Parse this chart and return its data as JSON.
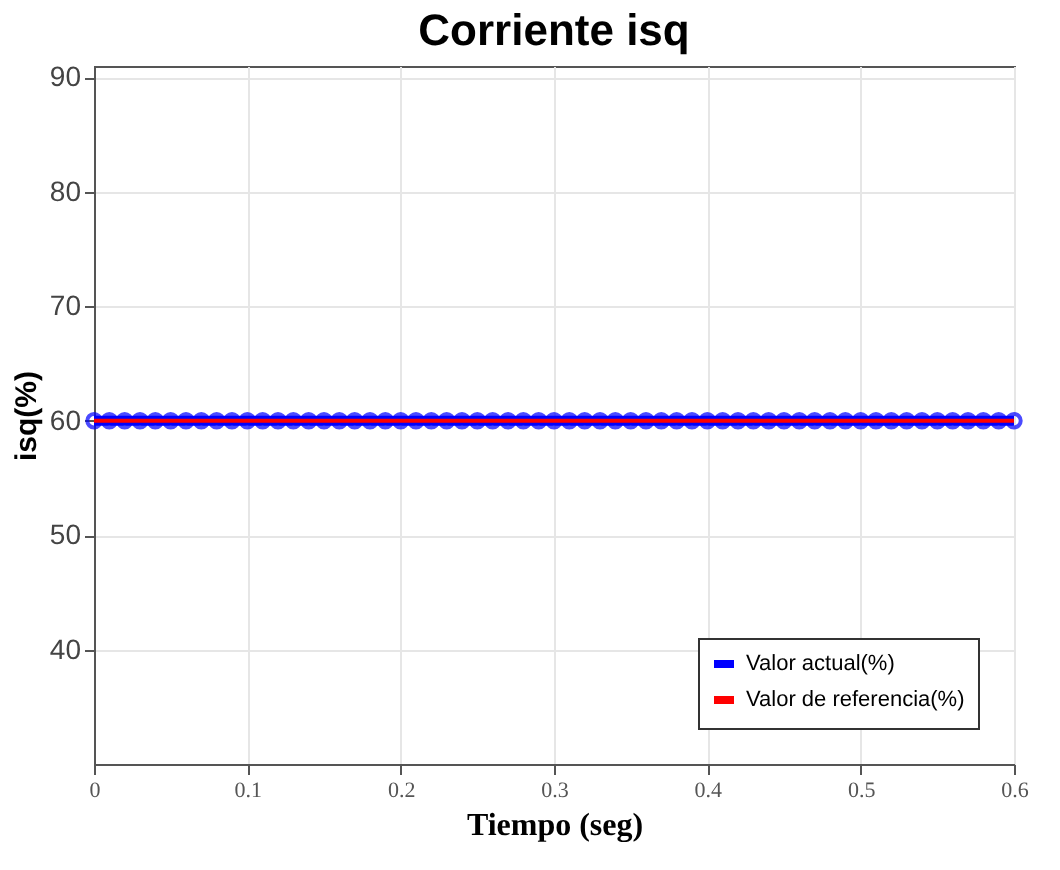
{
  "chart_data": {
    "type": "line",
    "title": "Corriente isq",
    "xlabel": "Tiempo (seg)",
    "ylabel": "isq(%)",
    "x": [
      0,
      0.01,
      0.02,
      0.03,
      0.04,
      0.05,
      0.06,
      0.07,
      0.08,
      0.09,
      0.1,
      0.11,
      0.12,
      0.13,
      0.14,
      0.15,
      0.16,
      0.17,
      0.18,
      0.19,
      0.2,
      0.21,
      0.22,
      0.23,
      0.24,
      0.25,
      0.26,
      0.27,
      0.28,
      0.29,
      0.3,
      0.31,
      0.32,
      0.33,
      0.34,
      0.35,
      0.36,
      0.37,
      0.38,
      0.39,
      0.4,
      0.41,
      0.42,
      0.43,
      0.44,
      0.45,
      0.46,
      0.47,
      0.48,
      0.49,
      0.5,
      0.51,
      0.52,
      0.53,
      0.54,
      0.55,
      0.56,
      0.57,
      0.58,
      0.59,
      0.6
    ],
    "series": [
      {
        "name": "Valor actual(%)",
        "color": "#0000ff",
        "marker": "circle",
        "values": [
          60,
          60,
          60,
          60,
          60,
          60,
          60,
          60,
          60,
          60,
          60,
          60,
          60,
          60,
          60,
          60,
          60,
          60,
          60,
          60,
          60,
          60,
          60,
          60,
          60,
          60,
          60,
          60,
          60,
          60,
          60,
          60,
          60,
          60,
          60,
          60,
          60,
          60,
          60,
          60,
          60,
          60,
          60,
          60,
          60,
          60,
          60,
          60,
          60,
          60,
          60,
          60,
          60,
          60,
          60,
          60,
          60,
          60,
          60,
          60,
          60
        ]
      },
      {
        "name": "Valor de referencia(%)",
        "color": "#ff0000",
        "values": [
          60,
          60,
          60,
          60,
          60,
          60,
          60,
          60,
          60,
          60,
          60,
          60,
          60,
          60,
          60,
          60,
          60,
          60,
          60,
          60,
          60,
          60,
          60,
          60,
          60,
          60,
          60,
          60,
          60,
          60,
          60,
          60,
          60,
          60,
          60,
          60,
          60,
          60,
          60,
          60,
          60,
          60,
          60,
          60,
          60,
          60,
          60,
          60,
          60,
          60,
          60,
          60,
          60,
          60,
          60,
          60,
          60,
          60,
          60,
          60,
          60
        ]
      }
    ],
    "xlim": [
      0,
      0.6
    ],
    "xticks": [
      0,
      0.1,
      0.2,
      0.3,
      0.4,
      0.5,
      0.6
    ],
    "ylim": [
      30,
      91
    ],
    "yticks": [
      40,
      50,
      60,
      70,
      80,
      90
    ],
    "grid": true,
    "legend": "bottom right"
  }
}
